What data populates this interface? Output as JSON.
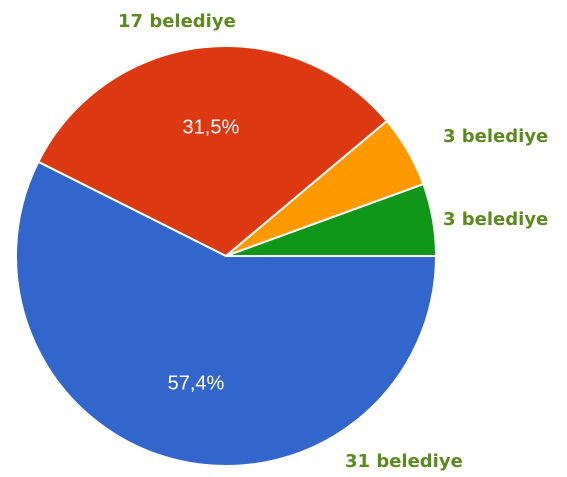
{
  "chart_data": {
    "type": "pie",
    "slices": [
      {
        "value": 31,
        "percent_label": "57,4%",
        "count_label": "31 belediye",
        "color": "#3366cc"
      },
      {
        "value": 17,
        "percent_label": "31,5%",
        "count_label": "17 belediye",
        "color": "#dc3912"
      },
      {
        "value": 3,
        "percent_label": "",
        "count_label": "3 belediye",
        "color": "#ff9900"
      },
      {
        "value": 3,
        "percent_label": "",
        "count_label": "3 belediye",
        "color": "#109618"
      }
    ],
    "start": "3 o'clock",
    "direction": "clockwise",
    "label_color": "#5b8a1e"
  }
}
